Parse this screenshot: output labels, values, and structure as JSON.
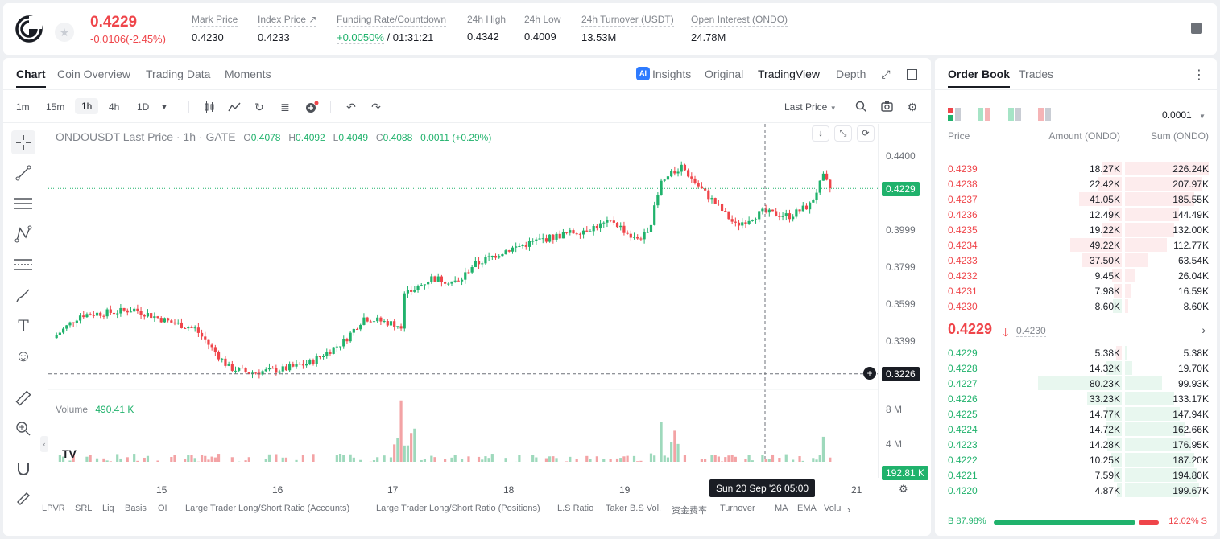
{
  "header": {
    "price": "0.4229",
    "change": "-0.0106(-2.45%)",
    "stats": [
      {
        "label": "Mark Price",
        "value": "0.4230"
      },
      {
        "label": "Index Price ↗",
        "value": "0.4233"
      },
      {
        "label": "Funding Rate/Countdown",
        "value_green": "+0.0050%",
        "value": " / 01:31:21"
      },
      {
        "label": "24h High",
        "value": "0.4342"
      },
      {
        "label": "24h Low",
        "value": "0.4009"
      },
      {
        "label": "24h Turnover (USDT)",
        "value": "13.53M"
      },
      {
        "label": "Open Interest (ONDO)",
        "value": "24.78M"
      }
    ]
  },
  "chart_tabs": [
    "Chart",
    "Coin Overview",
    "Trading Data",
    "Moments"
  ],
  "view_tabs": {
    "insights": "Insights",
    "original": "Original",
    "tradingview": "TradingView",
    "depth": "Depth"
  },
  "ai_badge": "AI",
  "timeframes": [
    "1m",
    "15m",
    "1h",
    "4h",
    "1D"
  ],
  "last_price_select": "Last Price",
  "legend": {
    "symbol": "ONDOUSDT Last Price · 1h · GATE",
    "o": "0.4078",
    "h": "0.4092",
    "l": "0.4049",
    "c": "0.4088",
    "chg": "0.0011 (+0.29%)"
  },
  "volume_legend": {
    "label": "Volume",
    "value": "490.41 K"
  },
  "yaxis": {
    "labels": [
      "0.4400",
      "0.3999",
      "0.3799",
      "0.3599",
      "0.3399"
    ],
    "current": "0.4229",
    "cross": "0.3226",
    "vol_labels": [
      "8 M",
      "4 M"
    ],
    "vol_current": "192.81 K"
  },
  "xaxis": {
    "labels": [
      "15",
      "16",
      "17",
      "18",
      "19",
      "21"
    ],
    "cross": "Sun 20 Sep '26   05:00"
  },
  "indicators": [
    "LPVR",
    "SRL",
    "Liq",
    "Basis",
    "OI",
    "Large Trader Long/Short Ratio (Accounts)",
    "Large Trader Long/Short Ratio (Positions)",
    "L.S Ratio",
    "Taker B.S Vol.",
    "资金费率",
    "Turnover",
    "MA",
    "EMA",
    "Volu"
  ],
  "chart_data": {
    "type": "candlestick",
    "price_range": [
      0.3226,
      0.44
    ],
    "current": 0.4229
  },
  "orderbook": {
    "tabs": [
      "Order Book",
      "Trades"
    ],
    "precision": "0.0001",
    "headers": [
      "Price",
      "Amount (ONDO)",
      "Sum (ONDO)"
    ],
    "asks": [
      {
        "p": "0.4239",
        "a": "18.27K",
        "s": "226.24K",
        "av": 18.27,
        "sv": 226.24
      },
      {
        "p": "0.4238",
        "a": "22.42K",
        "s": "207.97K",
        "av": 22.42,
        "sv": 207.97
      },
      {
        "p": "0.4237",
        "a": "41.05K",
        "s": "185.55K",
        "av": 41.05,
        "sv": 185.55
      },
      {
        "p": "0.4236",
        "a": "12.49K",
        "s": "144.49K",
        "av": 12.49,
        "sv": 144.49
      },
      {
        "p": "0.4235",
        "a": "19.22K",
        "s": "132.00K",
        "av": 19.22,
        "sv": 132.0
      },
      {
        "p": "0.4234",
        "a": "49.22K",
        "s": "112.77K",
        "av": 49.22,
        "sv": 112.77
      },
      {
        "p": "0.4233",
        "a": "37.50K",
        "s": "63.54K",
        "av": 37.5,
        "sv": 63.54
      },
      {
        "p": "0.4232",
        "a": "9.45K",
        "s": "26.04K",
        "av": 9.45,
        "sv": 26.04
      },
      {
        "p": "0.4231",
        "a": "7.98K",
        "s": "16.59K",
        "av": 7.98,
        "sv": 16.59
      },
      {
        "p": "0.4230",
        "a": "8.60K",
        "s": "8.60K",
        "av": 8.6,
        "sv": 8.6,
        "green": true
      }
    ],
    "mid": "0.4229",
    "mid_mark": "0.4230",
    "bids": [
      {
        "p": "0.4229",
        "a": "5.38K",
        "s": "5.38K",
        "av": 5.38,
        "sv": 5.38,
        "red": true
      },
      {
        "p": "0.4228",
        "a": "14.32K",
        "s": "19.70K",
        "av": 14.32,
        "sv": 19.7
      },
      {
        "p": "0.4227",
        "a": "80.23K",
        "s": "99.93K",
        "av": 80.23,
        "sv": 99.93
      },
      {
        "p": "0.4226",
        "a": "33.23K",
        "s": "133.17K",
        "av": 33.23,
        "sv": 133.17
      },
      {
        "p": "0.4225",
        "a": "14.77K",
        "s": "147.94K",
        "av": 14.77,
        "sv": 147.94
      },
      {
        "p": "0.4224",
        "a": "14.72K",
        "s": "162.66K",
        "av": 14.72,
        "sv": 162.66
      },
      {
        "p": "0.4223",
        "a": "14.28K",
        "s": "176.95K",
        "av": 14.28,
        "sv": 176.95
      },
      {
        "p": "0.4222",
        "a": "10.25K",
        "s": "187.20K",
        "av": 10.25,
        "sv": 187.2
      },
      {
        "p": "0.4221",
        "a": "7.59K",
        "s": "194.80K",
        "av": 7.59,
        "sv": 194.8
      },
      {
        "p": "0.4220",
        "a": "4.87K",
        "s": "199.67K",
        "av": 4.87,
        "sv": 199.67
      }
    ],
    "ratio": {
      "b": "B 87.98%",
      "s": "12.02% S",
      "bv": 87.98
    }
  },
  "colors": {
    "up": "#20b26c",
    "down": "#ef454a"
  }
}
